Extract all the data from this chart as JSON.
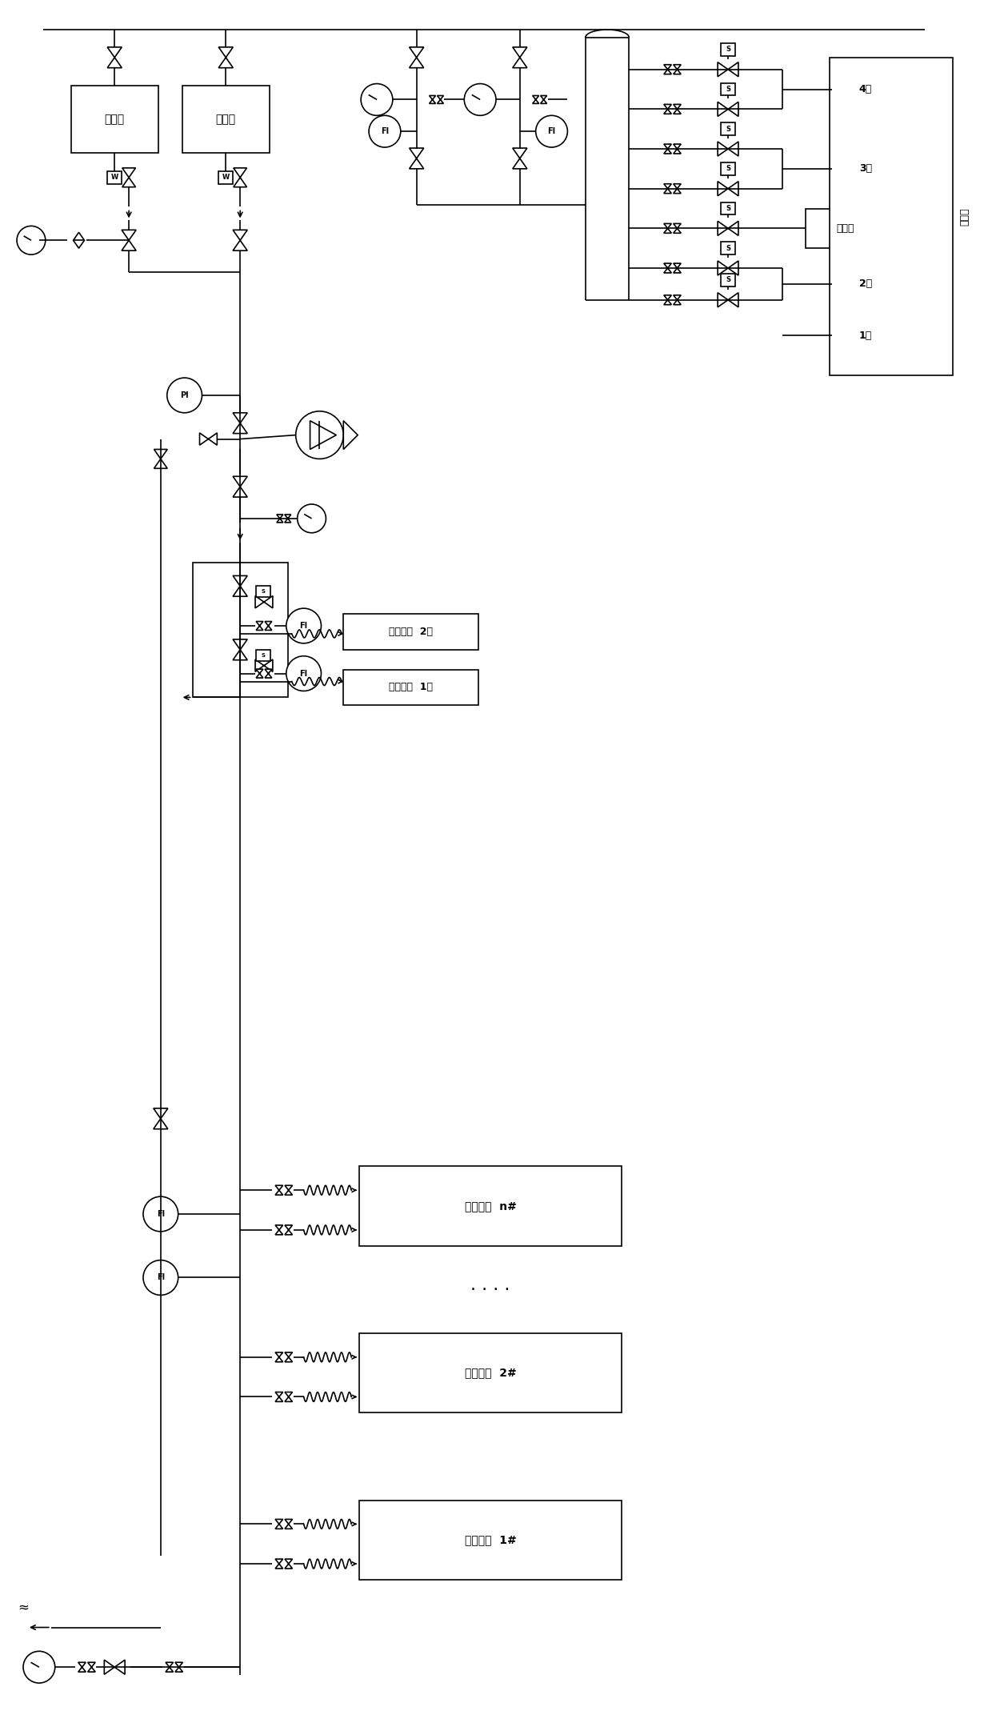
{
  "bg_color": "#ffffff",
  "lw": 1.2,
  "labels": {
    "box1": "矿务机",
    "box2": "矿务机",
    "igniter": "点火器",
    "burner_n": "燃烧区域  n#",
    "burner_2": "燃烧区域  2#",
    "burner_1": "燃烧区域  1#",
    "fuel_head2": "燃料头部  2组",
    "fuel_head1": "燃料头部  1组",
    "zone4": "4区",
    "zone3": "3区",
    "zone2": "2区",
    "zone1": "1区",
    "PI": "PI",
    "FI": "FI",
    "combustion_chamber": "燃烧室"
  }
}
